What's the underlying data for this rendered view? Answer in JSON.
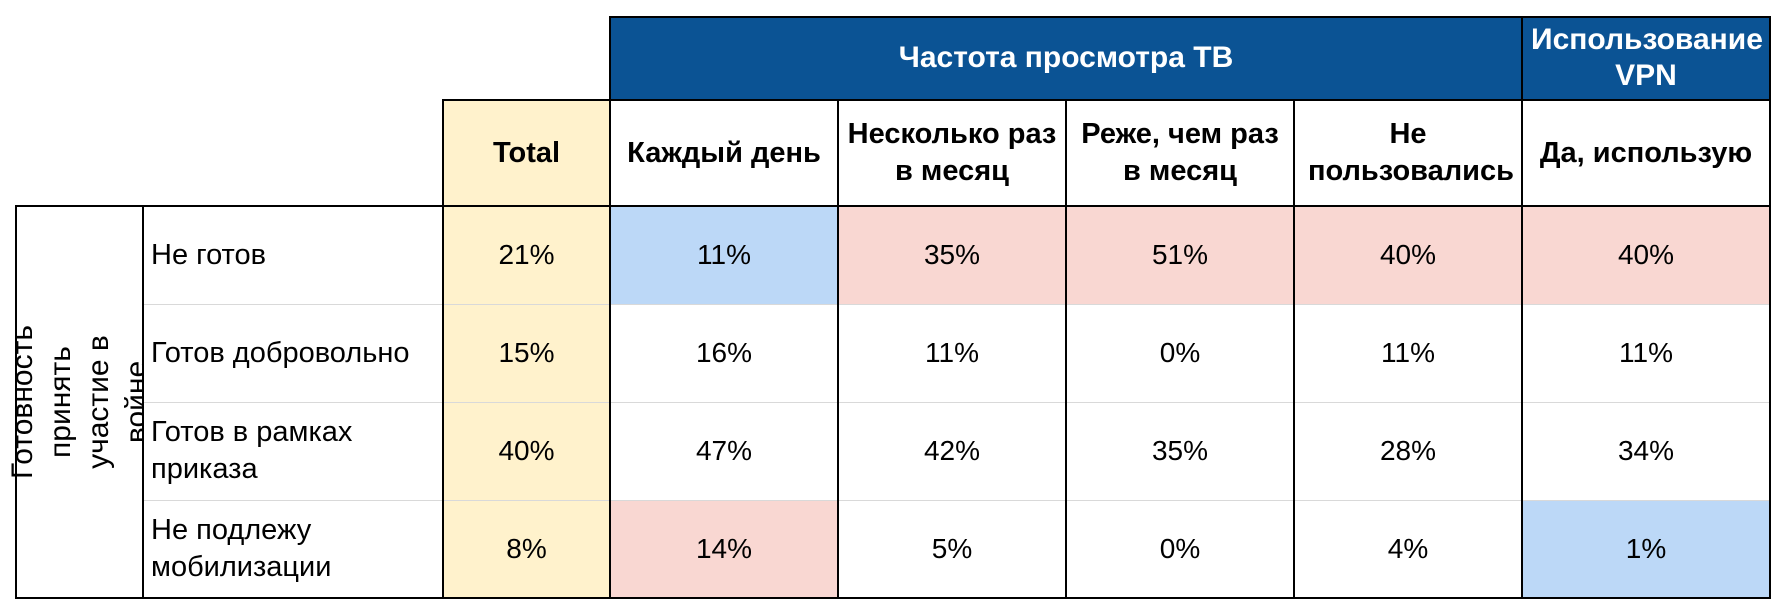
{
  "chart_data": {
    "type": "table",
    "row_group_label": "Готовность принять участие в войне",
    "groups": [
      {
        "label": "Частота просмотра ТВ",
        "span": 4
      },
      {
        "label": "Использование VPN",
        "span": 1
      }
    ],
    "columns": [
      "Total",
      "Каждый день",
      "Несколько раз в месяц",
      "Реже, чем раз в месяц",
      "Не пользовались",
      "Да, использую"
    ],
    "rows": [
      {
        "label": "Не готов",
        "values": [
          "21%",
          "11%",
          "35%",
          "51%",
          "40%",
          "40%"
        ],
        "hl": [
          "",
          "lo",
          "hi",
          "hi",
          "hi",
          "hi"
        ]
      },
      {
        "label": "Готов добровольно",
        "values": [
          "15%",
          "16%",
          "11%",
          "0%",
          "11%",
          "11%"
        ],
        "hl": [
          "",
          "",
          "",
          "",
          "",
          ""
        ]
      },
      {
        "label": "Готов в рамках приказа",
        "values": [
          "40%",
          "47%",
          "42%",
          "35%",
          "28%",
          "34%"
        ],
        "hl": [
          "",
          "",
          "",
          "",
          "",
          ""
        ]
      },
      {
        "label": "Не подлежу мобилизации",
        "values": [
          "8%",
          "14%",
          "5%",
          "0%",
          "4%",
          "1%"
        ],
        "hl": [
          "",
          "hi",
          "",
          "",
          "",
          "lo"
        ]
      }
    ],
    "colors": {
      "header": "#0b5394",
      "total": "#fff2cc",
      "high": "#f9d7d2",
      "low": "#bcd8f7"
    }
  }
}
